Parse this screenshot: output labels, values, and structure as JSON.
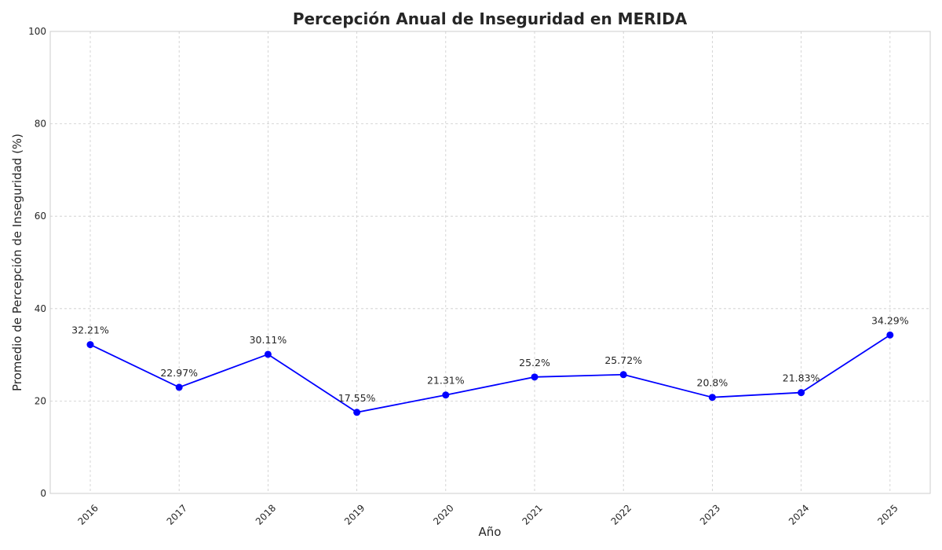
{
  "chart_data": {
    "type": "line",
    "title": "Percepción Anual de Inseguridad en MERIDA",
    "xlabel": "Año",
    "ylabel": "Promedio de Percepción de Inseguridad (%)",
    "ylim": [
      0,
      100
    ],
    "y_ticks": [
      "0",
      "20",
      "40",
      "60",
      "80",
      "100"
    ],
    "grid": true,
    "line_color": "#0000ff",
    "categories": [
      "2016",
      "2017",
      "2018",
      "2019",
      "2020",
      "2021",
      "2022",
      "2023",
      "2024",
      "2025"
    ],
    "series": [
      {
        "values": [
          32.21,
          22.97,
          30.11,
          17.55,
          21.31,
          25.2,
          25.72,
          20.8,
          21.83,
          34.29
        ],
        "data_labels": [
          "32.21%",
          "22.97%",
          "30.11%",
          "17.55%",
          "21.31%",
          "25.2%",
          "25.72%",
          "20.8%",
          "21.83%",
          "34.29%"
        ]
      }
    ]
  }
}
